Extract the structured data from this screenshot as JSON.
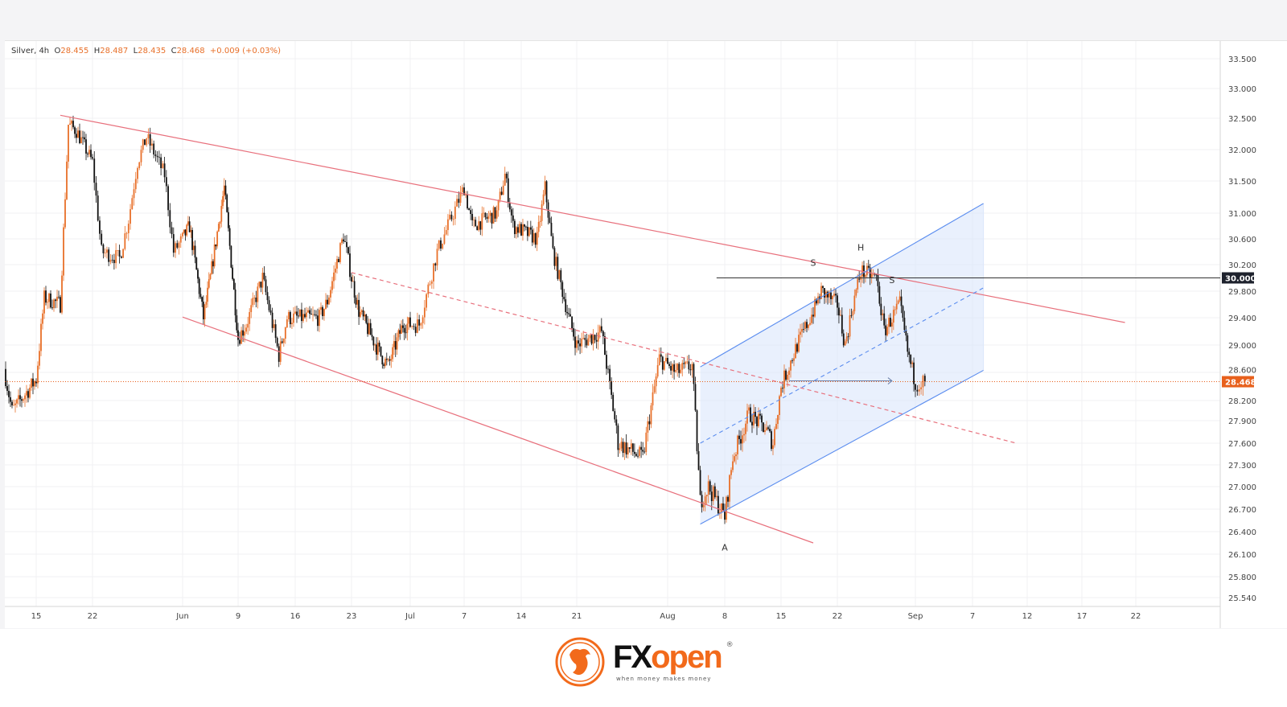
{
  "legend": {
    "symbol": "Silver, 4h",
    "o_label": "O",
    "o": "28.455",
    "h_label": "H",
    "h": "28.487",
    "l_label": "L",
    "l": "28.435",
    "c_label": "C",
    "c": "28.468",
    "change": "+0.009 (+0.03%)"
  },
  "colors": {
    "up": "#e8702a",
    "down": "#111111",
    "trend": "#e8707c",
    "channel": "#5b8def",
    "channel_fill": "#dbe6fb",
    "price_tag": "#e8601c",
    "level_tag": "#1e222d"
  },
  "chart_data": {
    "type": "candlestick",
    "title": "",
    "timeframe": "4h",
    "yaxis": {
      "ticks": [
        "33.500",
        "33.000",
        "32.500",
        "32.000",
        "31.500",
        "31.000",
        "30.600",
        "30.200",
        "29.800",
        "29.400",
        "29.000",
        "28.600",
        "28.200",
        "27.900",
        "27.600",
        "27.300",
        "27.000",
        "26.700",
        "26.400",
        "26.100",
        "25.800",
        "25.540"
      ]
    },
    "xaxis": {
      "ticks": [
        {
          "label": "15",
          "date": "05-15"
        },
        {
          "label": "22",
          "date": "05-22"
        },
        {
          "label": "Jun",
          "date": "06-01"
        },
        {
          "label": "9",
          "date": "06-09"
        },
        {
          "label": "16",
          "date": "06-16"
        },
        {
          "label": "23",
          "date": "06-23"
        },
        {
          "label": "Jul",
          "date": "07-01"
        },
        {
          "label": "7",
          "date": "07-07"
        },
        {
          "label": "14",
          "date": "07-14"
        },
        {
          "label": "21",
          "date": "07-21"
        },
        {
          "label": "Aug",
          "date": "08-01"
        },
        {
          "label": "8",
          "date": "08-08"
        },
        {
          "label": "15",
          "date": "08-15"
        },
        {
          "label": "22",
          "date": "08-22"
        },
        {
          "label": "Sep",
          "date": "09-01"
        },
        {
          "label": "7",
          "date": "09-07"
        },
        {
          "label": "12",
          "date": "09-12"
        },
        {
          "label": "17",
          "date": "09-17"
        },
        {
          "label": "22",
          "date": "09-22"
        }
      ]
    },
    "price_path": [
      [
        "05-11",
        28.65
      ],
      [
        "05-12",
        28.05
      ],
      [
        "05-15",
        28.5
      ],
      [
        "05-16",
        29.7
      ],
      [
        "05-18",
        29.6
      ],
      [
        "05-19",
        32.4
      ],
      [
        "05-20",
        32.3
      ],
      [
        "05-22",
        31.8
      ],
      [
        "05-23",
        30.4
      ],
      [
        "05-25",
        30.3
      ],
      [
        "05-26",
        30.9
      ],
      [
        "05-27",
        31.8
      ],
      [
        "05-28",
        32.2
      ],
      [
        "05-30",
        31.6
      ],
      [
        "05-31",
        30.4
      ],
      [
        "06-02",
        30.8
      ],
      [
        "06-04",
        29.4
      ],
      [
        "06-05",
        30.0
      ],
      [
        "06-07",
        31.4
      ],
      [
        "06-09",
        29.1
      ],
      [
        "06-10",
        29.3
      ],
      [
        "06-12",
        30.0
      ],
      [
        "06-14",
        28.85
      ],
      [
        "06-15",
        29.4
      ],
      [
        "06-19",
        29.4
      ],
      [
        "06-20",
        29.65
      ],
      [
        "06-22",
        30.65
      ],
      [
        "06-23",
        30.0
      ],
      [
        "06-24",
        29.5
      ],
      [
        "06-27",
        28.85
      ],
      [
        "06-28",
        28.7
      ],
      [
        "06-30",
        29.3
      ],
      [
        "07-02",
        29.3
      ],
      [
        "07-04",
        30.4
      ],
      [
        "07-07",
        31.4
      ],
      [
        "07-08",
        30.8
      ],
      [
        "07-11",
        31.0
      ],
      [
        "07-12",
        31.6
      ],
      [
        "07-13",
        30.8
      ],
      [
        "07-16",
        30.6
      ],
      [
        "07-17",
        31.4
      ],
      [
        "07-18",
        30.4
      ],
      [
        "07-20",
        29.4
      ],
      [
        "07-21",
        29.0
      ],
      [
        "07-24",
        29.2
      ],
      [
        "07-26",
        27.6
      ],
      [
        "07-29",
        27.4
      ],
      [
        "07-31",
        28.8
      ],
      [
        "08-02",
        28.6
      ],
      [
        "08-04",
        28.7
      ],
      [
        "08-05",
        26.8
      ],
      [
        "08-06",
        27.0
      ],
      [
        "08-08",
        26.6
      ],
      [
        "08-09",
        27.4
      ],
      [
        "08-11",
        28.0
      ],
      [
        "08-13",
        27.8
      ],
      [
        "08-14",
        27.6
      ],
      [
        "08-15",
        28.4
      ],
      [
        "08-17",
        29.0
      ],
      [
        "08-19",
        29.5
      ],
      [
        "08-20",
        29.8
      ],
      [
        "08-22",
        29.6
      ],
      [
        "08-23",
        29.0
      ],
      [
        "08-24",
        29.6
      ],
      [
        "08-25",
        30.1
      ],
      [
        "08-27",
        30.0
      ],
      [
        "08-28",
        29.2
      ],
      [
        "08-30",
        29.6
      ],
      [
        "08-31",
        28.9
      ],
      [
        "09-01",
        28.45
      ],
      [
        "09-02",
        28.468
      ]
    ],
    "last_price": "28.468",
    "level": {
      "price": 30.0,
      "label": "30.000",
      "from": "08-07"
    },
    "trendlines": [
      {
        "kind": "resistance",
        "from": [
          "05-18",
          32.55
        ],
        "to": [
          "09-21",
          29.33
        ],
        "style": "solid"
      },
      {
        "kind": "support",
        "from": [
          "06-01",
          29.41
        ],
        "to": [
          "08-19",
          26.25
        ],
        "style": "solid"
      },
      {
        "kind": "median",
        "from": [
          "06-23",
          30.08
        ],
        "to": [
          "09-11",
          27.6
        ],
        "style": "dashed"
      }
    ],
    "channel": {
      "lower": {
        "from": [
          "08-05",
          26.5
        ],
        "to": [
          "09-08",
          28.63
        ]
      },
      "upper": {
        "from": [
          "08-05",
          28.68
        ],
        "to": [
          "09-08",
          31.15
        ]
      },
      "middle": {
        "from": [
          "08-05",
          27.6
        ],
        "to": [
          "09-08",
          29.85
        ]
      }
    },
    "arrow": {
      "from": [
        "08-16",
        28.468
      ],
      "to": [
        "08-29",
        28.468
      ]
    },
    "pattern_labels": [
      {
        "text": "S",
        "date": "08-19",
        "price": 30.18
      },
      {
        "text": "H",
        "date": "08-25",
        "price": 30.42
      },
      {
        "text": "S",
        "date": "08-29",
        "price": 29.92
      },
      {
        "text": "A",
        "date": "08-08",
        "price": 26.15
      }
    ]
  },
  "footer": {
    "brand_a": "FX",
    "brand_b": "open",
    "tagline": "when money makes money",
    "reg": "®"
  }
}
